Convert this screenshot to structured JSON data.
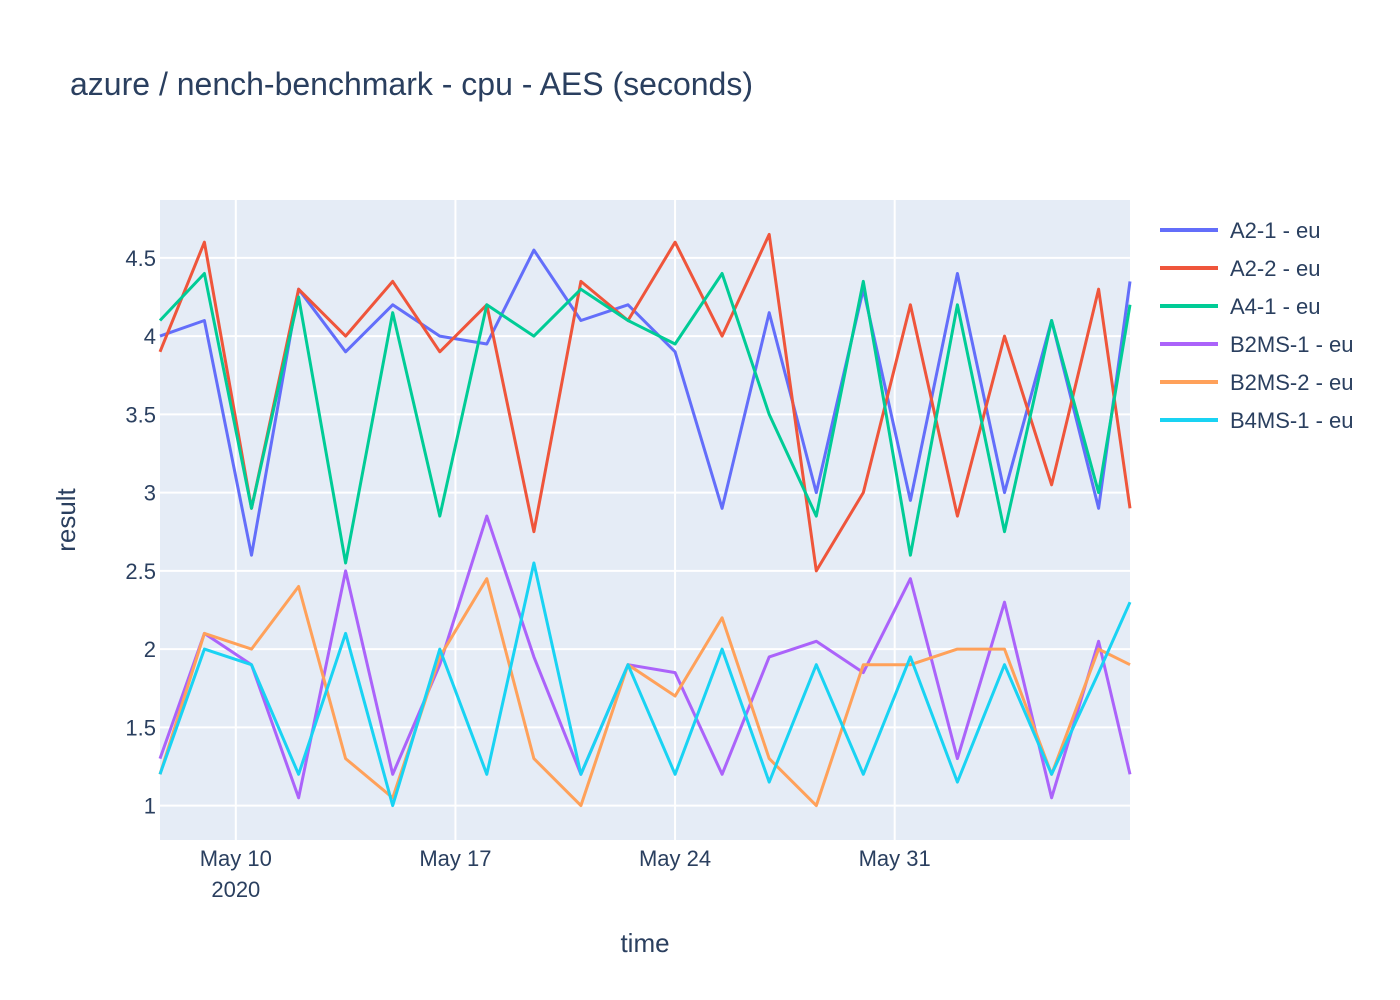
{
  "chart_data": {
    "type": "line",
    "title": "azure / nench-benchmark - cpu - AES (seconds)",
    "xlabel": "time",
    "ylabel": "result",
    "x_range": [
      "2020-05-07T14:00",
      "2020-06-07T12:00"
    ],
    "y_range": [
      0.78,
      4.87
    ],
    "y_ticks": [
      1,
      1.5,
      2,
      2.5,
      3,
      3.5,
      4,
      4.5
    ],
    "y_tick_labels": [
      "1",
      "1.5",
      "2",
      "2.5",
      "3",
      "3.5",
      "4",
      "4.5"
    ],
    "x_ticks": [
      {
        "date": "2020-05-10",
        "label": "May 10",
        "sublabel": "2020"
      },
      {
        "date": "2020-05-17",
        "label": "May 17",
        "sublabel": ""
      },
      {
        "date": "2020-05-24",
        "label": "May 24",
        "sublabel": ""
      },
      {
        "date": "2020-05-31",
        "label": "May 31",
        "sublabel": ""
      }
    ],
    "grid": true,
    "legend_position": "right",
    "plot_bgcolor": "#e5ecf6",
    "series": [
      {
        "name": "A2-1 - eu",
        "color": "#636efa",
        "x": [
          "2020-05-07T14:00",
          "2020-05-09T00:00",
          "2020-05-10T12:00",
          "2020-05-12T00:00",
          "2020-05-13T12:00",
          "2020-05-15T00:00",
          "2020-05-16T12:00",
          "2020-05-18T00:00",
          "2020-05-19T12:00",
          "2020-05-21T00:00",
          "2020-05-22T12:00",
          "2020-05-24T00:00",
          "2020-05-25T12:00",
          "2020-05-27T00:00",
          "2020-05-28T12:00",
          "2020-05-30T00:00",
          "2020-05-31T12:00",
          "2020-06-02T00:00",
          "2020-06-03T12:00",
          "2020-06-05T00:00",
          "2020-06-06T12:00",
          "2020-06-07T12:00"
        ],
        "y": [
          4.0,
          4.1,
          2.6,
          4.3,
          3.9,
          4.2,
          4.0,
          3.95,
          4.55,
          4.1,
          4.2,
          3.9,
          2.9,
          4.15,
          3.0,
          4.3,
          2.95,
          4.4,
          3.0,
          4.1,
          2.9,
          4.35
        ]
      },
      {
        "name": "A2-2 - eu",
        "color": "#ef553b",
        "x": [
          "2020-05-07T14:00",
          "2020-05-09T00:00",
          "2020-05-10T12:00",
          "2020-05-12T00:00",
          "2020-05-13T12:00",
          "2020-05-15T00:00",
          "2020-05-16T12:00",
          "2020-05-18T00:00",
          "2020-05-19T12:00",
          "2020-05-21T00:00",
          "2020-05-22T12:00",
          "2020-05-24T00:00",
          "2020-05-25T12:00",
          "2020-05-27T00:00",
          "2020-05-28T12:00",
          "2020-05-30T00:00",
          "2020-05-31T12:00",
          "2020-06-02T00:00",
          "2020-06-03T12:00",
          "2020-06-05T00:00",
          "2020-06-06T12:00",
          "2020-06-07T12:00"
        ],
        "y": [
          3.9,
          4.6,
          2.9,
          4.3,
          4.0,
          4.35,
          3.9,
          4.2,
          2.75,
          4.35,
          4.1,
          4.6,
          4.0,
          4.65,
          2.5,
          3.0,
          4.2,
          2.85,
          4.0,
          3.05,
          4.3,
          2.9
        ]
      },
      {
        "name": "A4-1 - eu",
        "color": "#00cc96",
        "x": [
          "2020-05-07T14:00",
          "2020-05-09T00:00",
          "2020-05-10T12:00",
          "2020-05-12T00:00",
          "2020-05-13T12:00",
          "2020-05-15T00:00",
          "2020-05-16T12:00",
          "2020-05-18T00:00",
          "2020-05-19T12:00",
          "2020-05-21T00:00",
          "2020-05-22T12:00",
          "2020-05-24T00:00",
          "2020-05-25T12:00",
          "2020-05-27T00:00",
          "2020-05-28T12:00",
          "2020-05-30T00:00",
          "2020-05-31T12:00",
          "2020-06-02T00:00",
          "2020-06-03T12:00",
          "2020-06-05T00:00",
          "2020-06-06T12:00",
          "2020-06-07T12:00"
        ],
        "y": [
          4.1,
          4.4,
          2.9,
          4.25,
          2.55,
          4.15,
          2.85,
          4.2,
          4.0,
          4.3,
          4.1,
          3.95,
          4.4,
          3.5,
          2.85,
          4.35,
          2.6,
          4.2,
          2.75,
          4.1,
          3.0,
          4.2
        ]
      },
      {
        "name": "B2MS-1 - eu",
        "color": "#ab63fa",
        "x": [
          "2020-05-07T14:00",
          "2020-05-09T00:00",
          "2020-05-10T12:00",
          "2020-05-12T00:00",
          "2020-05-13T12:00",
          "2020-05-15T00:00",
          "2020-05-16T12:00",
          "2020-05-18T00:00",
          "2020-05-19T12:00",
          "2020-05-21T00:00",
          "2020-05-22T12:00",
          "2020-05-24T00:00",
          "2020-05-25T12:00",
          "2020-05-27T00:00",
          "2020-05-28T12:00",
          "2020-05-30T00:00",
          "2020-05-31T12:00",
          "2020-06-02T00:00",
          "2020-06-03T12:00",
          "2020-06-05T00:00",
          "2020-06-06T12:00",
          "2020-06-07T12:00"
        ],
        "y": [
          1.3,
          2.1,
          1.9,
          1.05,
          2.5,
          1.2,
          1.9,
          2.85,
          1.95,
          1.2,
          1.9,
          1.85,
          1.2,
          1.95,
          2.05,
          1.85,
          2.45,
          1.3,
          2.3,
          1.05,
          2.05,
          1.2
        ]
      },
      {
        "name": "B2MS-2 - eu",
        "color": "#ffa15a",
        "x": [
          "2020-05-07T14:00",
          "2020-05-09T00:00",
          "2020-05-10T12:00",
          "2020-05-12T00:00",
          "2020-05-13T12:00",
          "2020-05-15T00:00",
          "2020-05-16T12:00",
          "2020-05-18T00:00",
          "2020-05-19T12:00",
          "2020-05-21T00:00",
          "2020-05-22T12:00",
          "2020-05-24T00:00",
          "2020-05-25T12:00",
          "2020-05-27T00:00",
          "2020-05-28T12:00",
          "2020-05-30T00:00",
          "2020-05-31T12:00",
          "2020-06-02T00:00",
          "2020-06-03T12:00",
          "2020-06-05T00:00",
          "2020-06-06T12:00",
          "2020-06-07T12:00"
        ],
        "y": [
          1.2,
          2.1,
          2.0,
          2.4,
          1.3,
          1.05,
          1.95,
          2.45,
          1.3,
          1.0,
          1.9,
          1.7,
          2.2,
          1.3,
          1.0,
          1.9,
          1.9,
          2.0,
          2.0,
          1.2,
          2.0,
          1.9
        ]
      },
      {
        "name": "B4MS-1 - eu",
        "color": "#19d3f3",
        "x": [
          "2020-05-07T14:00",
          "2020-05-09T00:00",
          "2020-05-10T12:00",
          "2020-05-12T00:00",
          "2020-05-13T12:00",
          "2020-05-15T00:00",
          "2020-05-16T12:00",
          "2020-05-18T00:00",
          "2020-05-19T12:00",
          "2020-05-21T00:00",
          "2020-05-22T12:00",
          "2020-05-24T00:00",
          "2020-05-25T12:00",
          "2020-05-27T00:00",
          "2020-05-28T12:00",
          "2020-05-30T00:00",
          "2020-05-31T12:00",
          "2020-06-02T00:00",
          "2020-06-03T12:00",
          "2020-06-05T00:00",
          "2020-06-06T12:00",
          "2020-06-07T12:00"
        ],
        "y": [
          1.2,
          2.0,
          1.9,
          1.2,
          2.1,
          1.0,
          2.0,
          1.2,
          2.55,
          1.2,
          1.9,
          1.2,
          2.0,
          1.15,
          1.9,
          1.2,
          1.95,
          1.15,
          1.9,
          1.2,
          1.85,
          2.3
        ]
      }
    ]
  }
}
